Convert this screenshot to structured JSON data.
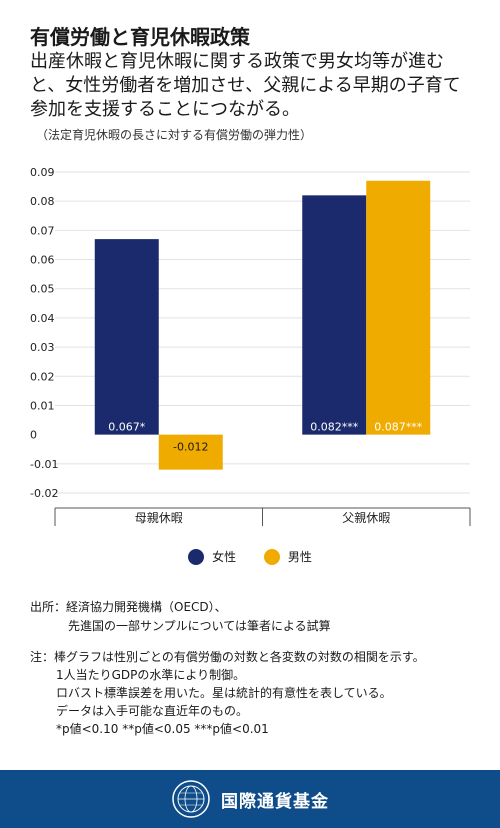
{
  "header": {
    "title": "有償労働と育児休暇政策",
    "subtitle": "出産休暇と育児休暇に関する政策で男女均等が進むと、女性労働者を増加させ、父親による早期の子育て参加を支援することにつながる。",
    "chart_caption": "（法定育児休暇の長さに対する有償労働の弾力性）"
  },
  "chart_data": {
    "type": "bar",
    "categories": [
      "母親休暇",
      "父親休暇"
    ],
    "series": [
      {
        "name": "女性",
        "values": [
          0.067,
          0.082
        ],
        "labels": [
          "0.067*",
          "0.082***"
        ],
        "color": "#1a2a6c"
      },
      {
        "name": "男性",
        "values": [
          -0.012,
          0.087
        ],
        "labels": [
          "-0.012",
          "0.087***"
        ],
        "color": "#f0ab00"
      }
    ],
    "yticks": [
      "0.09",
      "0.08",
      "0.07",
      "0.06",
      "0.05",
      "0.04",
      "0.03",
      "0.02",
      "0.01",
      "0",
      "-0.01",
      "-0.02"
    ],
    "ylim": [
      -0.02,
      0.09
    ],
    "grid": true,
    "legend_position": "bottom"
  },
  "source": {
    "line1": "出所：経済協力開発機構（OECD）、",
    "line2": "先進国の一部サンプルについては筆者による試算"
  },
  "notes": {
    "line1": "注：棒グラフは性別ごとの有償労働の対数と各変数の対数の相関を示す。",
    "line2": "1人当たりGDPの水準により制御。",
    "line3": "ロバスト標準誤差を用いた。星は統計的有意性を表している。",
    "line4": "データは入手可能な直近年のもの。",
    "line5": "*p値<0.10 **p値<0.05 ***p値<0.01"
  },
  "footer": {
    "org_name": "国際通貨基金",
    "logo_icon": "imf-seal-icon"
  }
}
